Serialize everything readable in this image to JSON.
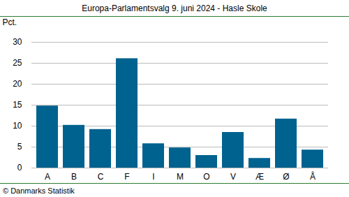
{
  "chart_data": {
    "type": "bar",
    "title": "Europa-Parlamentsvalg 9. juni 2024 - Hasle Skole",
    "y_label": "Pct.",
    "caption": "© Danmarks Statistik",
    "categories": [
      "A",
      "B",
      "C",
      "F",
      "I",
      "M",
      "O",
      "V",
      "Æ",
      "Ø",
      "Å"
    ],
    "values": [
      14.8,
      10.2,
      9.2,
      26.1,
      5.8,
      4.8,
      3.0,
      8.5,
      2.3,
      11.7,
      4.3
    ],
    "color": "#00628f",
    "ylim": [
      0,
      30
    ],
    "yticks": [
      0,
      5,
      10,
      15,
      20,
      25,
      30
    ],
    "grid": true
  }
}
